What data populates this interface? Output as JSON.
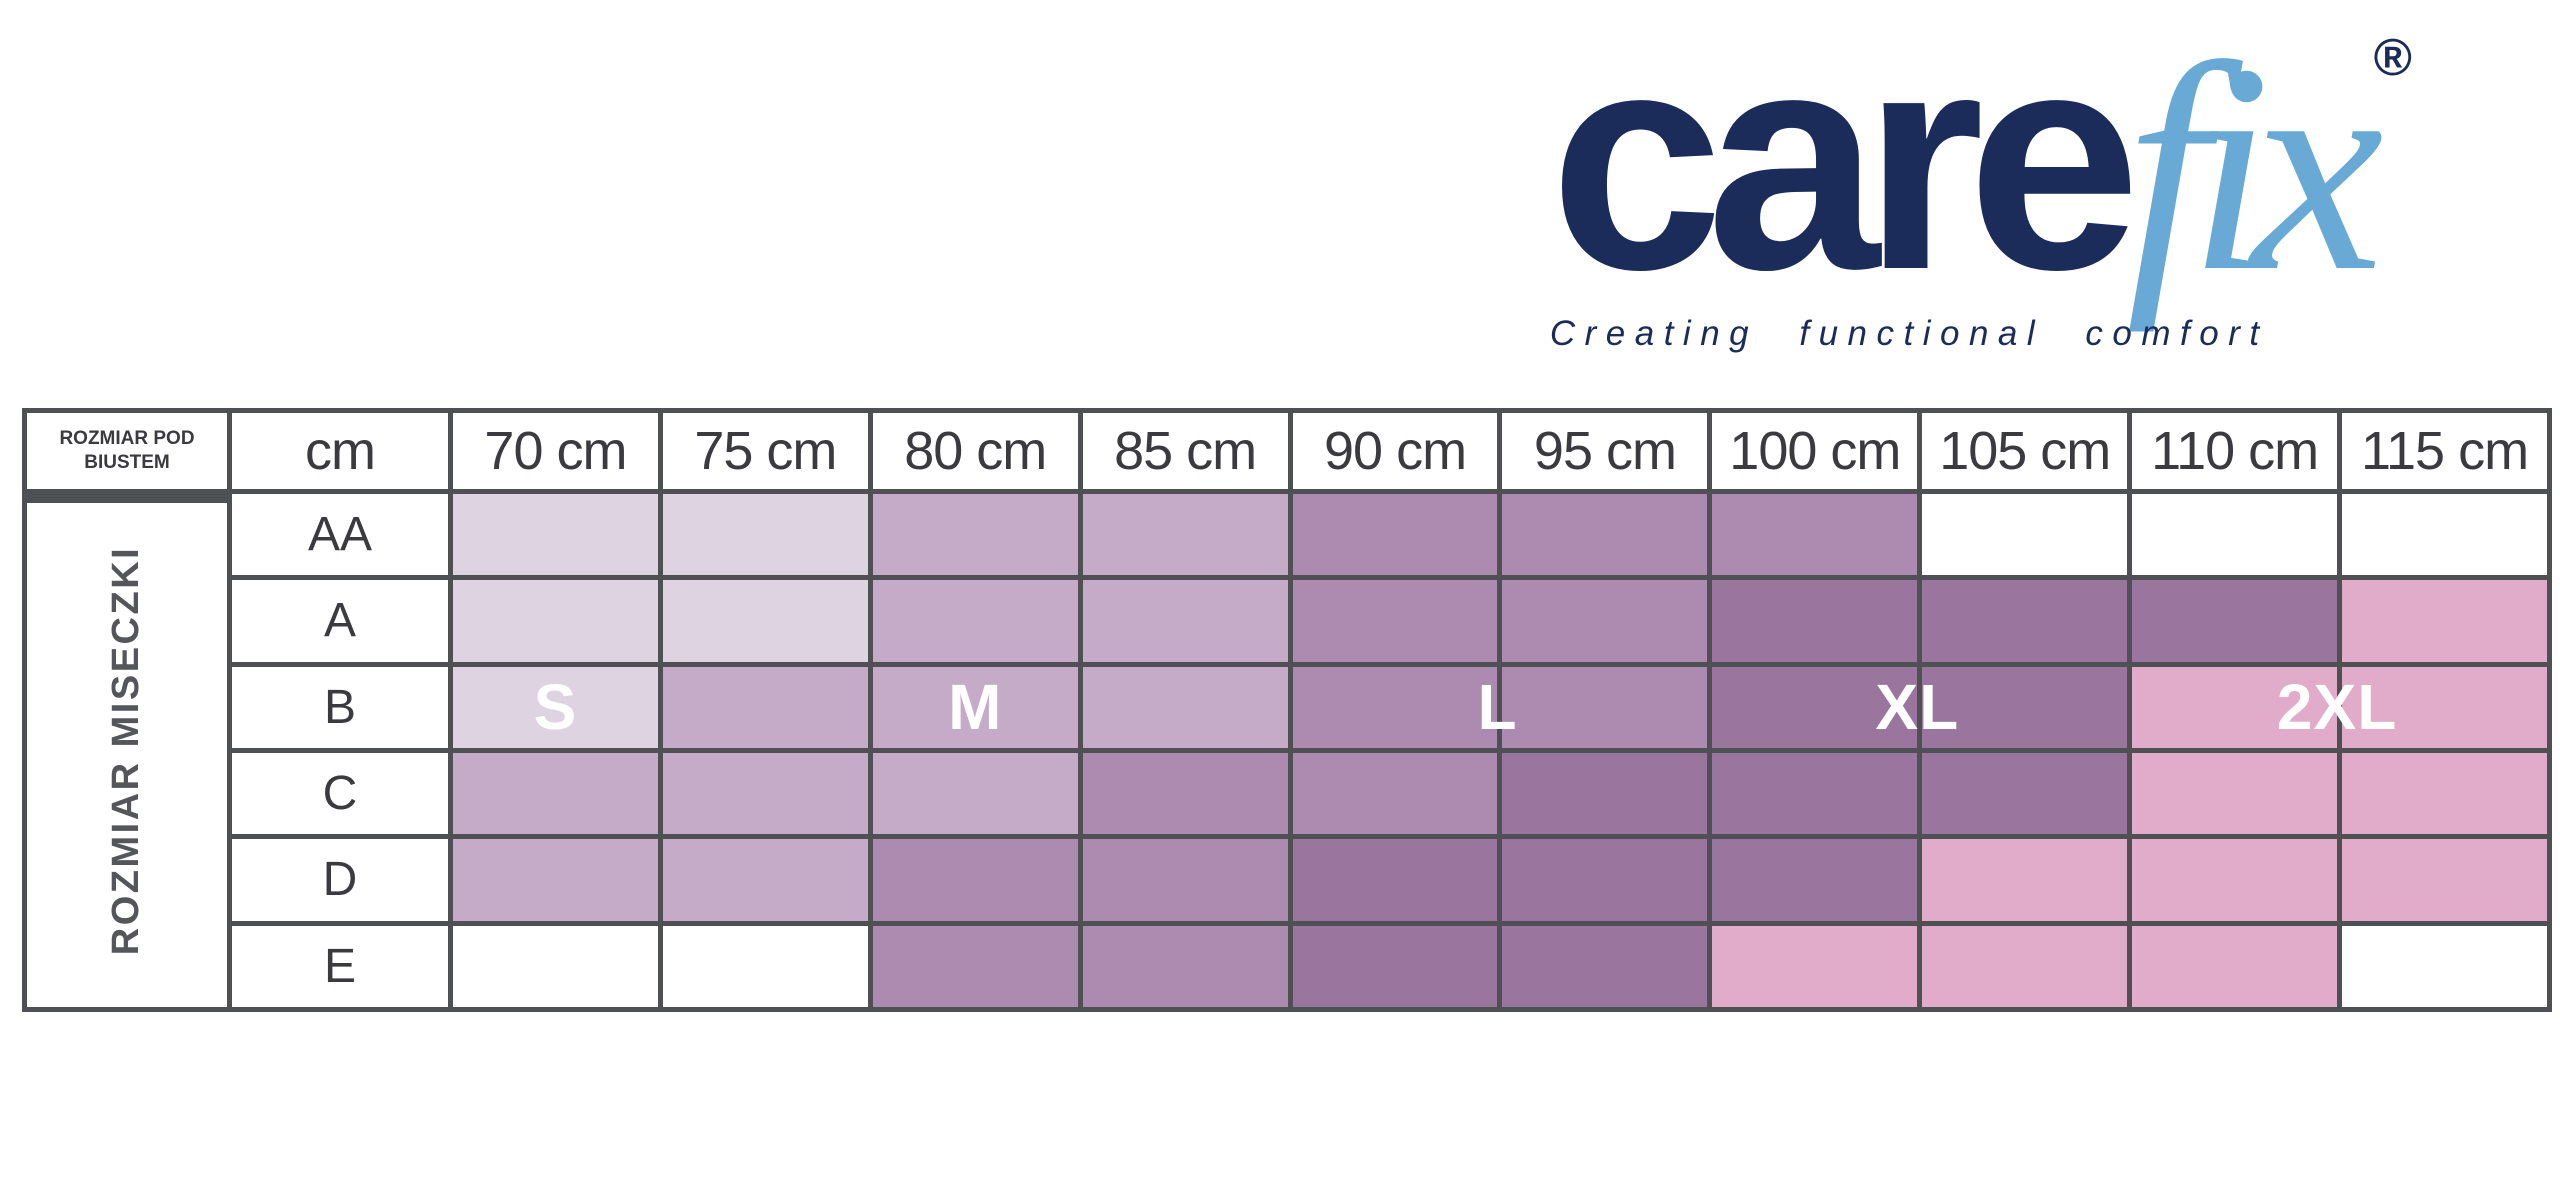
{
  "logo": {
    "care": "care",
    "fix": "fix",
    "registered": "®",
    "tagline": "Creating functional comfort",
    "care_color": "#1b2b5a",
    "fix_color": "#68aad5"
  },
  "table": {
    "corner_label": "ROZMIAR POD BIUSTEM",
    "side_label": "ROZMIAR MISECZKI",
    "unit_header": "cm"
  },
  "chart_data": {
    "type": "table",
    "x_axis_label": "ROZMIAR POD BIUSTEM",
    "y_axis_label": "ROZMIAR MISECZKI",
    "x_categories": [
      "70 cm",
      "75 cm",
      "80 cm",
      "85 cm",
      "90 cm",
      "95 cm",
      "100 cm",
      "105 cm",
      "110 cm",
      "115 cm"
    ],
    "y_categories": [
      "AA",
      "A",
      "B",
      "C",
      "D",
      "E"
    ],
    "grid_line_color": "#4f5054",
    "text_color": "#3b3b3f",
    "size_colors": {
      "S": "#ded3e0",
      "M": "#c5abc7",
      "L": "#ad8bb0",
      "XL": "#9a759d",
      "2XL": "#e1acca",
      "": "#ffffff"
    },
    "cells": [
      [
        "S",
        "S",
        "M",
        "M",
        "L",
        "L",
        "L",
        "",
        "",
        ""
      ],
      [
        "S",
        "S",
        "M",
        "M",
        "L",
        "L",
        "XL",
        "XL",
        "XL",
        "2XL"
      ],
      [
        "S",
        "M",
        "M",
        "M",
        "L",
        "L",
        "XL",
        "XL",
        "2XL",
        "2XL"
      ],
      [
        "M",
        "M",
        "M",
        "L",
        "L",
        "XL",
        "XL",
        "XL",
        "2XL",
        "2XL"
      ],
      [
        "M",
        "M",
        "L",
        "L",
        "XL",
        "XL",
        "XL",
        "2XL",
        "2XL",
        "2XL"
      ],
      [
        "",
        "",
        "L",
        "L",
        "XL",
        "XL",
        "2XL",
        "2XL",
        "2XL",
        ""
      ]
    ],
    "size_labels": [
      {
        "text": "S",
        "row": 2,
        "col": 0,
        "placement": "center"
      },
      {
        "text": "M",
        "row": 2,
        "col": 2,
        "placement": "center"
      },
      {
        "text": "L",
        "row": 2,
        "col": 4,
        "placement": "edge"
      },
      {
        "text": "XL",
        "row": 2,
        "col": 6,
        "placement": "edge"
      },
      {
        "text": "2XL",
        "row": 2,
        "col": 8,
        "placement": "edge"
      }
    ]
  }
}
